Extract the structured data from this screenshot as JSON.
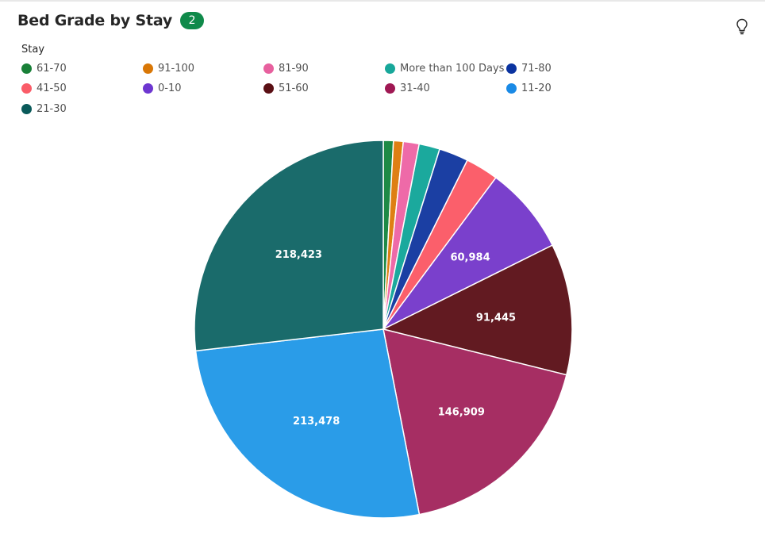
{
  "header": {
    "title": "Bed Grade by Stay",
    "badge": "2",
    "insight_icon": "lightbulb-icon"
  },
  "legend": {
    "title": "Stay",
    "items": [
      {
        "label": "61-70",
        "color": "#198038"
      },
      {
        "label": "91-100",
        "color": "#d97706"
      },
      {
        "label": "81-90",
        "color": "#e7609e"
      },
      {
        "label": "More than 100 Days",
        "color": "#17a79a"
      },
      {
        "label": "71-80",
        "color": "#0a33a0"
      },
      {
        "label": "41-50",
        "color": "#fa5c68"
      },
      {
        "label": "0-10",
        "color": "#6d36d0"
      },
      {
        "label": "51-60",
        "color": "#5a0f14"
      },
      {
        "label": "31-40",
        "color": "#9f1853"
      },
      {
        "label": "11-20",
        "color": "#1a8ae6"
      },
      {
        "label": "21-30",
        "color": "#0a5a5a"
      }
    ]
  },
  "chart_data": {
    "type": "pie",
    "title": "Bed Grade by Stay",
    "legend_title": "Stay",
    "legend_position": "top-left",
    "slices": [
      {
        "label": "61-70",
        "value": 7000,
        "color": "#1e8a46",
        "show_label": false
      },
      {
        "label": "91-100",
        "value": 6800,
        "color": "#de7f14",
        "show_label": false
      },
      {
        "label": "81-90",
        "value": 11000,
        "color": "#ee6aa8",
        "show_label": false
      },
      {
        "label": "More than 100 Days",
        "value": 14500,
        "color": "#1ba99d",
        "show_label": false
      },
      {
        "label": "71-80",
        "value": 20500,
        "color": "#1b3fa3",
        "show_label": false
      },
      {
        "label": "41-50",
        "value": 23000,
        "color": "#fb5f6b",
        "show_label": false
      },
      {
        "label": "0-10",
        "value": 60984,
        "display": "60,984",
        "color": "#7a40cc",
        "show_label": true
      },
      {
        "label": "51-60",
        "value": 91445,
        "display": "91,445",
        "color": "#621a21",
        "show_label": true
      },
      {
        "label": "31-40",
        "value": 146909,
        "display": "146,909",
        "color": "#a62e63",
        "show_label": true
      },
      {
        "label": "11-20",
        "value": 213478,
        "display": "213,478",
        "color": "#2a9ce8",
        "show_label": true
      },
      {
        "label": "21-30",
        "value": 218423,
        "display": "218,423",
        "color": "#1a6b6b",
        "show_label": true
      }
    ]
  }
}
